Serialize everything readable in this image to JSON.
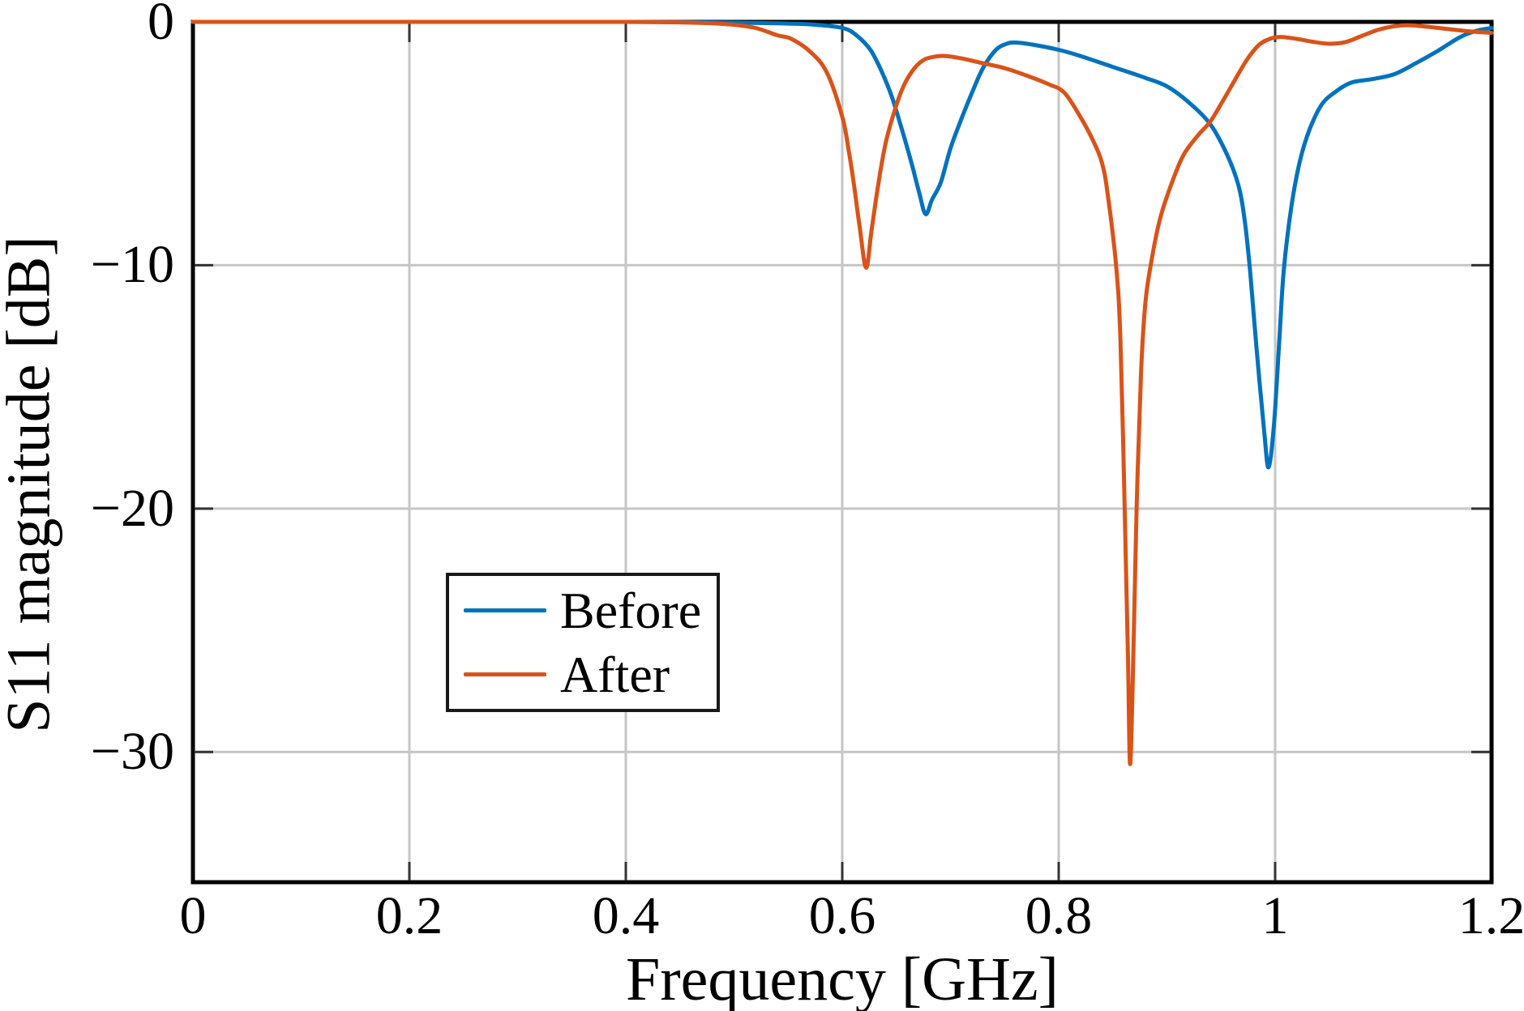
{
  "chart_data": {
    "type": "line",
    "title": "",
    "xlabel": "Frequency [GHz]",
    "ylabel": "S11 magnitude [dB]",
    "xlim": [
      0,
      1.2
    ],
    "ylim": [
      -35.35,
      0
    ],
    "grid": true,
    "grid_color": "#c6c6c6",
    "axis_color": "#000000",
    "tick_color": "#333333",
    "x_ticks": {
      "values": [
        0,
        0.2,
        0.4,
        0.6,
        0.8,
        1,
        1.2
      ],
      "labels": [
        "0",
        "0.2",
        "0.4",
        "0.6",
        "0.8",
        "1",
        "1.2"
      ]
    },
    "y_ticks": {
      "values": [
        0,
        -10,
        -20,
        -30
      ],
      "labels": [
        "0",
        "−10",
        "−20",
        "−30"
      ]
    },
    "x_gridlines": [
      0.2,
      0.4,
      0.6,
      0.8,
      1.0
    ],
    "y_gridlines": [
      -10,
      -20,
      -30
    ],
    "legend": {
      "position": "inside-lower-left",
      "border": true
    },
    "series": [
      {
        "name": "Before",
        "color": "#0072BD",
        "points": [
          [
            0,
            0
          ],
          [
            0.05,
            0
          ],
          [
            0.1,
            0
          ],
          [
            0.15,
            0
          ],
          [
            0.2,
            0
          ],
          [
            0.25,
            0
          ],
          [
            0.3,
            0
          ],
          [
            0.35,
            0
          ],
          [
            0.4,
            0
          ],
          [
            0.45,
            -0.01
          ],
          [
            0.5,
            -0.03
          ],
          [
            0.54,
            -0.06
          ],
          [
            0.57,
            -0.1
          ],
          [
            0.6,
            -0.25
          ],
          [
            0.613,
            -0.55
          ],
          [
            0.626,
            -1.15
          ],
          [
            0.636,
            -2.0
          ],
          [
            0.646,
            -3.1
          ],
          [
            0.655,
            -4.4
          ],
          [
            0.664,
            -5.8
          ],
          [
            0.671,
            -7.0
          ],
          [
            0.677,
            -7.9
          ],
          [
            0.683,
            -7.3
          ],
          [
            0.691,
            -6.6
          ],
          [
            0.7,
            -5.2
          ],
          [
            0.71,
            -4.0
          ],
          [
            0.72,
            -2.9
          ],
          [
            0.73,
            -1.9
          ],
          [
            0.742,
            -1.15
          ],
          [
            0.752,
            -0.9
          ],
          [
            0.76,
            -0.85
          ],
          [
            0.775,
            -0.93
          ],
          [
            0.8,
            -1.15
          ],
          [
            0.82,
            -1.4
          ],
          [
            0.85,
            -1.85
          ],
          [
            0.88,
            -2.3
          ],
          [
            0.9,
            -2.65
          ],
          [
            0.92,
            -3.3
          ],
          [
            0.94,
            -4.2
          ],
          [
            0.955,
            -5.4
          ],
          [
            0.966,
            -6.7
          ],
          [
            0.972,
            -8.2
          ],
          [
            0.977,
            -10.3
          ],
          [
            0.983,
            -13.5
          ],
          [
            0.99,
            -16.9
          ],
          [
            0.994,
            -18.3
          ],
          [
            0.999,
            -16.5
          ],
          [
            1.004,
            -13.0
          ],
          [
            1.008,
            -10.2
          ],
          [
            1.015,
            -7.6
          ],
          [
            1.023,
            -5.7
          ],
          [
            1.032,
            -4.4
          ],
          [
            1.043,
            -3.4
          ],
          [
            1.055,
            -2.9
          ],
          [
            1.07,
            -2.5
          ],
          [
            1.09,
            -2.35
          ],
          [
            1.11,
            -2.15
          ],
          [
            1.13,
            -1.7
          ],
          [
            1.15,
            -1.2
          ],
          [
            1.17,
            -0.65
          ],
          [
            1.185,
            -0.38
          ],
          [
            1.2,
            -0.25
          ]
        ]
      },
      {
        "name": "After",
        "color": "#D95319",
        "points": [
          [
            0,
            0
          ],
          [
            0.05,
            0
          ],
          [
            0.1,
            0
          ],
          [
            0.15,
            0
          ],
          [
            0.2,
            0
          ],
          [
            0.25,
            0
          ],
          [
            0.3,
            0
          ],
          [
            0.35,
            0
          ],
          [
            0.4,
            0
          ],
          [
            0.45,
            -0.02
          ],
          [
            0.48,
            -0.06
          ],
          [
            0.5,
            -0.12
          ],
          [
            0.52,
            -0.25
          ],
          [
            0.54,
            -0.55
          ],
          [
            0.553,
            -0.7
          ],
          [
            0.571,
            -1.25
          ],
          [
            0.586,
            -2.1
          ],
          [
            0.6,
            -3.9
          ],
          [
            0.606,
            -5.3
          ],
          [
            0.611,
            -6.75
          ],
          [
            0.616,
            -8.4
          ],
          [
            0.622,
            -10.1
          ],
          [
            0.627,
            -8.6
          ],
          [
            0.633,
            -6.75
          ],
          [
            0.64,
            -5.0
          ],
          [
            0.648,
            -3.7
          ],
          [
            0.656,
            -2.7
          ],
          [
            0.665,
            -2.0
          ],
          [
            0.674,
            -1.6
          ],
          [
            0.683,
            -1.45
          ],
          [
            0.695,
            -1.4
          ],
          [
            0.71,
            -1.5
          ],
          [
            0.73,
            -1.7
          ],
          [
            0.75,
            -1.9
          ],
          [
            0.77,
            -2.2
          ],
          [
            0.79,
            -2.55
          ],
          [
            0.805,
            -2.9
          ],
          [
            0.82,
            -3.9
          ],
          [
            0.832,
            -4.9
          ],
          [
            0.84,
            -5.8
          ],
          [
            0.845,
            -7.0
          ],
          [
            0.853,
            -10.0
          ],
          [
            0.857,
            -13.0
          ],
          [
            0.861,
            -20.0
          ],
          [
            0.864,
            -26.0
          ],
          [
            0.866,
            -30.5
          ],
          [
            0.869,
            -26.0
          ],
          [
            0.872,
            -20.0
          ],
          [
            0.876,
            -14.5
          ],
          [
            0.88,
            -11.6
          ],
          [
            0.885,
            -10.0
          ],
          [
            0.893,
            -8.2
          ],
          [
            0.903,
            -6.8
          ],
          [
            0.915,
            -5.5
          ],
          [
            0.928,
            -4.7
          ],
          [
            0.94,
            -4.1
          ],
          [
            0.951,
            -3.3
          ],
          [
            0.962,
            -2.45
          ],
          [
            0.974,
            -1.55
          ],
          [
            0.985,
            -0.95
          ],
          [
            0.995,
            -0.7
          ],
          [
            1.005,
            -0.62
          ],
          [
            1.02,
            -0.7
          ],
          [
            1.035,
            -0.82
          ],
          [
            1.05,
            -0.9
          ],
          [
            1.065,
            -0.83
          ],
          [
            1.08,
            -0.58
          ],
          [
            1.095,
            -0.33
          ],
          [
            1.11,
            -0.18
          ],
          [
            1.125,
            -0.14
          ],
          [
            1.145,
            -0.22
          ],
          [
            1.165,
            -0.32
          ],
          [
            1.185,
            -0.41
          ],
          [
            1.2,
            -0.45
          ]
        ]
      }
    ]
  }
}
